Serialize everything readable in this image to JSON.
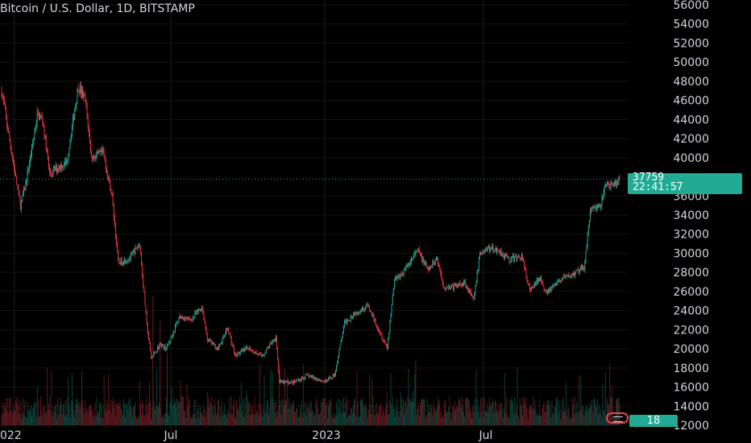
{
  "chart_data": {
    "type": "candlestick",
    "title": "Bitcoin / U.S. Dollar, 1D, BITSTAMP",
    "y_ticks": [
      "56000",
      "54000",
      "52000",
      "50000",
      "48000",
      "46000",
      "44000",
      "42000",
      "40000",
      "36000",
      "34000",
      "32000",
      "30000",
      "28000",
      "26000",
      "24000",
      "22000",
      "20000",
      "18000",
      "16000",
      "14000",
      "12000"
    ],
    "x_tick_labels": [
      "022",
      "Jul",
      "2023",
      "Jul"
    ],
    "ylim": [
      12000,
      56000
    ],
    "last_price": "37759",
    "countdown": "22:41:57",
    "volume_label": "18",
    "grid": true,
    "colors": {
      "up": "#22ab94",
      "down": "#f23645",
      "background": "#000000",
      "text": "#d1d4dc"
    },
    "price_path": [
      [
        "2022-01-01",
        47000
      ],
      [
        "2022-01-10",
        41800
      ],
      [
        "2022-01-22",
        35000
      ],
      [
        "2022-01-27",
        36800
      ],
      [
        "2022-02-05",
        41500
      ],
      [
        "2022-02-10",
        44500
      ],
      [
        "2022-02-16",
        44000
      ],
      [
        "2022-02-24",
        38300
      ],
      [
        "2022-03-05",
        39000
      ],
      [
        "2022-03-15",
        39500
      ],
      [
        "2022-03-28",
        47500
      ],
      [
        "2022-04-05",
        46000
      ],
      [
        "2022-04-12",
        40000
      ],
      [
        "2022-04-25",
        40500
      ],
      [
        "2022-05-05",
        36000
      ],
      [
        "2022-05-12",
        29000
      ],
      [
        "2022-05-25",
        29500
      ],
      [
        "2022-06-05",
        31000
      ],
      [
        "2022-06-13",
        22500
      ],
      [
        "2022-06-18",
        19000
      ],
      [
        "2022-06-28",
        20500
      ],
      [
        "2022-07-05",
        20000
      ],
      [
        "2022-07-20",
        23400
      ],
      [
        "2022-08-01",
        23000
      ],
      [
        "2022-08-14",
        24400
      ],
      [
        "2022-08-20",
        21000
      ],
      [
        "2022-09-01",
        20000
      ],
      [
        "2022-09-12",
        22200
      ],
      [
        "2022-09-20",
        19300
      ],
      [
        "2022-10-05",
        20100
      ],
      [
        "2022-10-20",
        19200
      ],
      [
        "2022-11-05",
        21300
      ],
      [
        "2022-11-09",
        16500
      ],
      [
        "2022-11-25",
        16500
      ],
      [
        "2022-12-10",
        17200
      ],
      [
        "2022-12-31",
        16550
      ],
      [
        "2023-01-10",
        17300
      ],
      [
        "2023-01-21",
        22700
      ],
      [
        "2023-02-01",
        23700
      ],
      [
        "2023-02-16",
        24500
      ],
      [
        "2023-03-10",
        20100
      ],
      [
        "2023-03-18",
        27300
      ],
      [
        "2023-03-28",
        28000
      ],
      [
        "2023-04-13",
        30300
      ],
      [
        "2023-04-25",
        28200
      ],
      [
        "2023-05-05",
        29500
      ],
      [
        "2023-05-12",
        26500
      ],
      [
        "2023-05-25",
        26500
      ],
      [
        "2023-06-05",
        27000
      ],
      [
        "2023-06-15",
        25000
      ],
      [
        "2023-06-22",
        30000
      ],
      [
        "2023-07-01",
        30500
      ],
      [
        "2023-07-14",
        30300
      ],
      [
        "2023-07-25",
        29300
      ],
      [
        "2023-08-08",
        29700
      ],
      [
        "2023-08-17",
        26000
      ],
      [
        "2023-08-29",
        27500
      ],
      [
        "2023-09-05",
        25800
      ],
      [
        "2023-09-20",
        27200
      ],
      [
        "2023-10-05",
        27800
      ],
      [
        "2023-10-17",
        28500
      ],
      [
        "2023-10-24",
        34500
      ],
      [
        "2023-11-05",
        35000
      ],
      [
        "2023-11-10",
        37300
      ],
      [
        "2023-11-20",
        37000
      ],
      [
        "2023-11-26",
        37759
      ]
    ]
  }
}
